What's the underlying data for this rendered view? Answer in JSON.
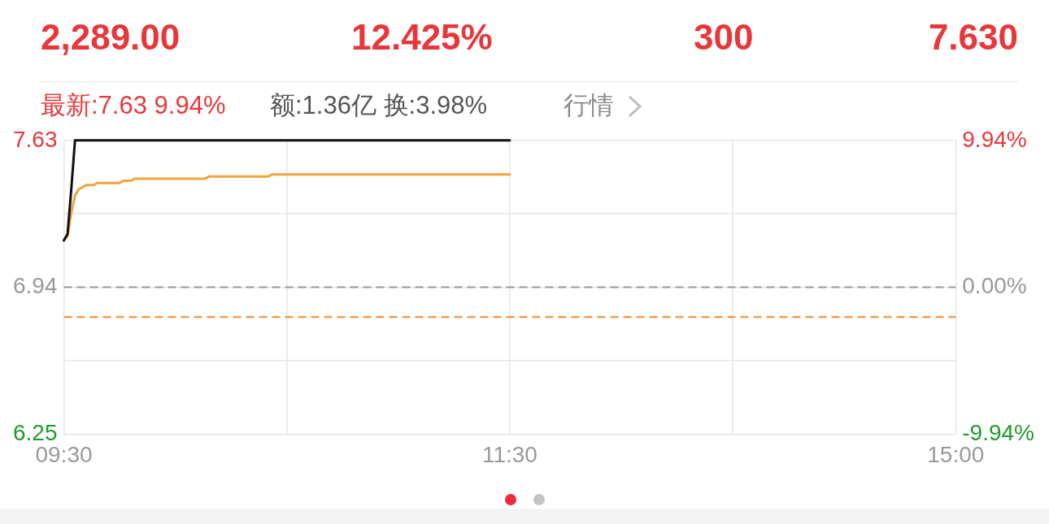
{
  "chart_data": {
    "type": "line",
    "annotations": [
      "2,289.00",
      "12.425%",
      "300",
      "7.630",
      "最新:7.63 9.94%",
      "额:1.36亿 换:3.98%",
      "行情"
    ],
    "categories": [
      "09:30",
      null,
      null,
      null,
      null,
      null,
      null,
      null,
      null,
      null,
      null,
      null,
      null,
      null,
      null,
      null,
      null,
      null,
      null,
      null,
      null,
      null,
      null,
      null,
      null,
      null,
      null,
      null,
      null,
      null,
      null,
      null,
      null,
      null,
      null,
      null,
      null,
      null,
      null,
      null,
      null,
      null,
      null,
      null,
      null,
      null,
      null,
      null,
      null,
      null,
      null,
      null,
      null,
      null,
      null,
      null,
      null,
      null,
      null,
      null,
      null,
      null,
      null,
      null,
      null,
      null,
      null,
      null,
      null,
      null,
      null,
      null,
      null,
      null,
      null,
      null,
      null,
      null,
      null,
      null,
      null,
      null,
      null,
      null,
      null,
      null,
      null,
      null,
      null,
      null,
      null,
      null,
      null,
      null,
      null,
      null,
      null,
      null,
      null,
      null,
      null,
      null,
      null,
      null,
      null,
      null,
      null,
      null,
      null,
      null,
      null,
      null,
      null,
      null,
      null,
      null,
      null,
      null,
      null,
      null,
      "11:30",
      null,
      null,
      null,
      null,
      null,
      null,
      null,
      null,
      null,
      null,
      null,
      null,
      null,
      null,
      null,
      null,
      null,
      null,
      null,
      null,
      null,
      null,
      null,
      null,
      null,
      null,
      null,
      null,
      null,
      null,
      null,
      null,
      null,
      null,
      null,
      null,
      null,
      null,
      null,
      null,
      null,
      null,
      null,
      null,
      null,
      null,
      null,
      null,
      null,
      null,
      null,
      null,
      null,
      null,
      null,
      null,
      null,
      null,
      null,
      null,
      null,
      null,
      null,
      null,
      null,
      null,
      null,
      null,
      null,
      null,
      null,
      null,
      null,
      null,
      null,
      null,
      null,
      null,
      null,
      null,
      null,
      null,
      null,
      null,
      null,
      null,
      null,
      null,
      null,
      null,
      null,
      null,
      null,
      null,
      null,
      null,
      null,
      null,
      null,
      null,
      null,
      null,
      null,
      null,
      null,
      null,
      null,
      null,
      null,
      null,
      null,
      null,
      null,
      null,
      null,
      null,
      null,
      null,
      null,
      "15:00"
    ],
    "series": [
      {
        "color": "#111111",
        "values": [
          7.16,
          7.19,
          7.4,
          7.63,
          7.63,
          7.63,
          7.63,
          7.63,
          7.63,
          7.63,
          7.63,
          7.63,
          7.63,
          7.63,
          7.63,
          7.63,
          7.63,
          7.63,
          7.63,
          7.63,
          7.63,
          7.63,
          7.63,
          7.63,
          7.63,
          7.63,
          7.63,
          7.63,
          7.63,
          7.63,
          7.63,
          7.63,
          7.63,
          7.63,
          7.63,
          7.63,
          7.63,
          7.63,
          7.63,
          7.63,
          7.63,
          7.63,
          7.63,
          7.63,
          7.63,
          7.63,
          7.63,
          7.63,
          7.63,
          7.63,
          7.63,
          7.63,
          7.63,
          7.63,
          7.63,
          7.63,
          7.63,
          7.63,
          7.63,
          7.63,
          7.63,
          7.63,
          7.63,
          7.63,
          7.63,
          7.63,
          7.63,
          7.63,
          7.63,
          7.63,
          7.63,
          7.63,
          7.63,
          7.63,
          7.63,
          7.63,
          7.63,
          7.63,
          7.63,
          7.63,
          7.63,
          7.63,
          7.63,
          7.63,
          7.63,
          7.63,
          7.63,
          7.63,
          7.63,
          7.63,
          7.63,
          7.63,
          7.63,
          7.63,
          7.63,
          7.63,
          7.63,
          7.63,
          7.63,
          7.63,
          7.63,
          7.63,
          7.63,
          7.63,
          7.63,
          7.63,
          7.63,
          7.63,
          7.63,
          7.63,
          7.63,
          7.63,
          7.63,
          7.63,
          7.63,
          7.63,
          7.63,
          7.63,
          7.63,
          7.63,
          7.63,
          null,
          null,
          null,
          null,
          null,
          null,
          null,
          null,
          null,
          null,
          null,
          null,
          null,
          null,
          null,
          null,
          null,
          null,
          null,
          null,
          null,
          null,
          null,
          null,
          null,
          null,
          null,
          null,
          null,
          null,
          null,
          null,
          null,
          null,
          null,
          null,
          null,
          null,
          null,
          null,
          null,
          null,
          null,
          null,
          null,
          null,
          null,
          null,
          null,
          null,
          null,
          null,
          null,
          null,
          null,
          null,
          null,
          null,
          null,
          null,
          null,
          null,
          null,
          null,
          null,
          null,
          null,
          null,
          null,
          null,
          null,
          null,
          null,
          null,
          null,
          null,
          null,
          null,
          null,
          null,
          null,
          null,
          null,
          null,
          null,
          null,
          null,
          null,
          null,
          null,
          null,
          null,
          null,
          null,
          null,
          null,
          null,
          null,
          null,
          null,
          null,
          null,
          null,
          null,
          null,
          null,
          null,
          null,
          null,
          null,
          null,
          null,
          null,
          null,
          null,
          null,
          null,
          null,
          null,
          null
        ]
      },
      {
        "color": "#f2a33a",
        "values": [
          7.16,
          7.18,
          7.29,
          7.37,
          7.4,
          7.41,
          7.42,
          7.42,
          7.42,
          7.43,
          7.43,
          7.43,
          7.43,
          7.43,
          7.43,
          7.43,
          7.44,
          7.44,
          7.44,
          7.45,
          7.45,
          7.45,
          7.45,
          7.45,
          7.45,
          7.45,
          7.45,
          7.45,
          7.45,
          7.45,
          7.45,
          7.45,
          7.45,
          7.45,
          7.45,
          7.45,
          7.45,
          7.45,
          7.45,
          7.46,
          7.46,
          7.46,
          7.46,
          7.46,
          7.46,
          7.46,
          7.46,
          7.46,
          7.46,
          7.46,
          7.46,
          7.46,
          7.46,
          7.46,
          7.46,
          7.46,
          7.47,
          7.47,
          7.47,
          7.47,
          7.47,
          7.47,
          7.47,
          7.47,
          7.47,
          7.47,
          7.47,
          7.47,
          7.47,
          7.47,
          7.47,
          7.47,
          7.47,
          7.47,
          7.47,
          7.47,
          7.47,
          7.47,
          7.47,
          7.47,
          7.47,
          7.47,
          7.47,
          7.47,
          7.47,
          7.47,
          7.47,
          7.47,
          7.47,
          7.47,
          7.47,
          7.47,
          7.47,
          7.47,
          7.47,
          7.47,
          7.47,
          7.47,
          7.47,
          7.47,
          7.47,
          7.47,
          7.47,
          7.47,
          7.47,
          7.47,
          7.47,
          7.47,
          7.47,
          7.47,
          7.47,
          7.47,
          7.47,
          7.47,
          7.47,
          7.47,
          7.47,
          7.47,
          7.47,
          7.47,
          7.47,
          null,
          null,
          null,
          null,
          null,
          null,
          null,
          null,
          null,
          null,
          null,
          null,
          null,
          null,
          null,
          null,
          null,
          null,
          null,
          null,
          null,
          null,
          null,
          null,
          null,
          null,
          null,
          null,
          null,
          null,
          null,
          null,
          null,
          null,
          null,
          null,
          null,
          null,
          null,
          null,
          null,
          null,
          null,
          null,
          null,
          null,
          null,
          null,
          null,
          null,
          null,
          null,
          null,
          null,
          null,
          null,
          null,
          null,
          null,
          null,
          null,
          null,
          null,
          null,
          null,
          null,
          null,
          null,
          null,
          null,
          null,
          null,
          null,
          null,
          null,
          null,
          null,
          null,
          null,
          null,
          null,
          null,
          null,
          null,
          null,
          null,
          null,
          null,
          null,
          null,
          null,
          null,
          null,
          null,
          null,
          null,
          null,
          null,
          null,
          null,
          null,
          null,
          null,
          null,
          null,
          null,
          null,
          null,
          null,
          null,
          null,
          null,
          null,
          null,
          null,
          null,
          null,
          null,
          null,
          null
        ]
      }
    ],
    "ylim": [
      6.25,
      7.63
    ],
    "yticks": [
      6.25,
      {
        "value": 6.595,
        "label": null
      },
      6.94,
      {
        "value": 7.285,
        "label": null
      },
      7.63
    ],
    "y2lim": [
      -9.94,
      9.94
    ],
    "y2ticks": [
      {
        "value": -9.94,
        "label": "-9.94%"
      },
      {
        "value": 0,
        "label": "0.00%"
      },
      {
        "value": 9.94,
        "label": "9.94%"
      }
    ],
    "ref_lines": [
      {
        "axis": "y",
        "value": 6.94,
        "color": "#999999",
        "line_style": "dashed"
      },
      {
        "axis": "y",
        "value": 6.8,
        "color": "#f5892e",
        "line_style": "dashed"
      }
    ],
    "grid": true
  }
}
